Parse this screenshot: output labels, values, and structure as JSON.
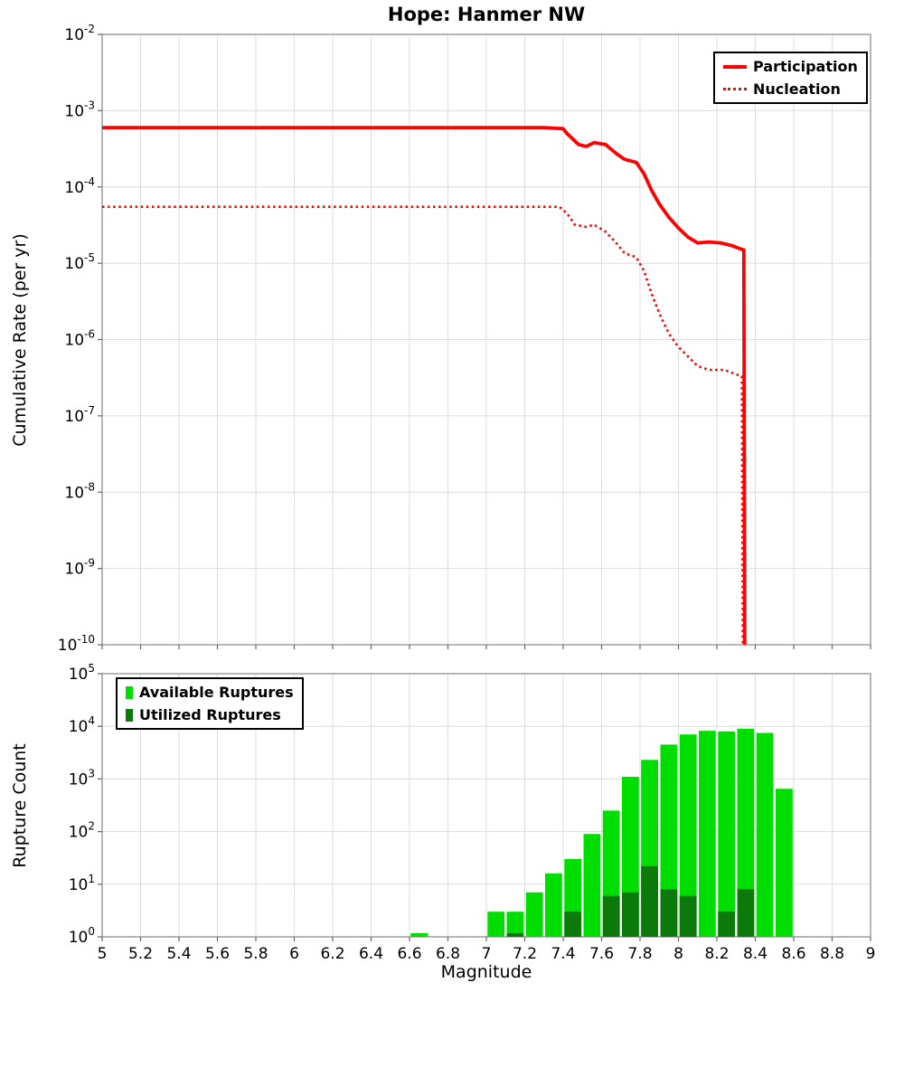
{
  "style": {
    "background": "#ffffff",
    "grid_color": "#dcdcdc",
    "frame_color": "#9e9e9e",
    "tick_color": "#666666",
    "text_color": "#000000"
  },
  "chart_data": [
    {
      "type": "line",
      "title": "Hope: Hanmer NW",
      "xlabel": "",
      "ylabel": "Cumulative Rate (per yr)",
      "xlim": [
        5,
        9
      ],
      "x_tick_step": 0.2,
      "ylog": true,
      "ylim": [
        1e-10,
        0.01
      ],
      "legend_position": "top-right",
      "series": [
        {
          "name": "Participation",
          "color": "#ff0000",
          "style": "solid",
          "points": [
            [
              5.0,
              0.0006
            ],
            [
              7.3,
              0.0006
            ],
            [
              7.4,
              0.00058
            ],
            [
              7.42,
              0.0005
            ],
            [
              7.48,
              0.00036
            ],
            [
              7.52,
              0.00034
            ],
            [
              7.56,
              0.00038
            ],
            [
              7.62,
              0.00036
            ],
            [
              7.68,
              0.00027
            ],
            [
              7.72,
              0.00023
            ],
            [
              7.78,
              0.00021
            ],
            [
              7.82,
              0.00015
            ],
            [
              7.86,
              9e-05
            ],
            [
              7.9,
              6e-05
            ],
            [
              7.95,
              4e-05
            ],
            [
              8.0,
              2.9e-05
            ],
            [
              8.05,
              2.2e-05
            ],
            [
              8.1,
              1.85e-05
            ],
            [
              8.16,
              1.9e-05
            ],
            [
              8.22,
              1.85e-05
            ],
            [
              8.28,
              1.7e-05
            ],
            [
              8.32,
              1.55e-05
            ],
            [
              8.34,
              1.5e-05
            ],
            [
              8.345,
              1e-10
            ]
          ]
        },
        {
          "name": "Nucleation",
          "color": "#ff0000",
          "style": "dotted",
          "points": [
            [
              5.0,
              5.5e-05
            ],
            [
              7.38,
              5.5e-05
            ],
            [
              7.42,
              4.5e-05
            ],
            [
              7.46,
              3.2e-05
            ],
            [
              7.52,
              3e-05
            ],
            [
              7.56,
              3.2e-05
            ],
            [
              7.62,
              2.6e-05
            ],
            [
              7.68,
              1.8e-05
            ],
            [
              7.72,
              1.35e-05
            ],
            [
              7.78,
              1.2e-05
            ],
            [
              7.82,
              8e-06
            ],
            [
              7.86,
              4e-06
            ],
            [
              7.9,
              2.2e-06
            ],
            [
              7.95,
              1.2e-06
            ],
            [
              8.0,
              8e-07
            ],
            [
              8.05,
              6e-07
            ],
            [
              8.1,
              4.5e-07
            ],
            [
              8.16,
              4e-07
            ],
            [
              8.24,
              4e-07
            ],
            [
              8.3,
              3.5e-07
            ],
            [
              8.33,
              3.3e-07
            ],
            [
              8.335,
              1e-10
            ]
          ]
        }
      ]
    },
    {
      "type": "bar",
      "title": "",
      "xlabel": "Magnitude",
      "ylabel": "Rupture Count",
      "xlim": [
        5,
        9
      ],
      "x_tick_step": 0.2,
      "ylog": true,
      "ylim": [
        1,
        100000.0
      ],
      "bar_width": 0.1,
      "legend_position": "top-left",
      "series": [
        {
          "name": "Available Ruptures",
          "color": "#00dd00",
          "bars": [
            [
              6.65,
              1
            ],
            [
              7.05,
              3
            ],
            [
              7.15,
              3
            ],
            [
              7.25,
              7
            ],
            [
              7.35,
              16
            ],
            [
              7.45,
              30
            ],
            [
              7.55,
              90
            ],
            [
              7.65,
              250
            ],
            [
              7.75,
              1100
            ],
            [
              7.85,
              2300
            ],
            [
              7.95,
              4500
            ],
            [
              8.05,
              7000
            ],
            [
              8.15,
              8200
            ],
            [
              8.25,
              8000
            ],
            [
              8.35,
              9000
            ],
            [
              8.45,
              7500
            ],
            [
              8.55,
              650
            ]
          ]
        },
        {
          "name": "Utilized Ruptures",
          "color": "#0b7a0b",
          "bars": [
            [
              7.15,
              1
            ],
            [
              7.45,
              3
            ],
            [
              7.65,
              6
            ],
            [
              7.75,
              7
            ],
            [
              7.85,
              22
            ],
            [
              7.95,
              8
            ],
            [
              8.05,
              6
            ],
            [
              8.25,
              3
            ],
            [
              8.35,
              8
            ]
          ]
        }
      ]
    }
  ]
}
